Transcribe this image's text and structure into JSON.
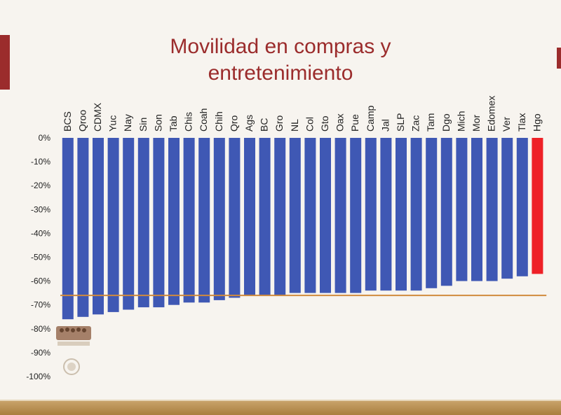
{
  "title_lines": [
    "Movilidad en compras y",
    "entretenimiento"
  ],
  "chart_data": {
    "type": "bar",
    "title": "Movilidad en compras y entretenimiento",
    "categories": [
      "BCS",
      "Qroo",
      "CDMX",
      "Yuc",
      "Nay",
      "Sin",
      "Son",
      "Tab",
      "Chis",
      "Coah",
      "Chih",
      "Qro",
      "Ags",
      "BC",
      "Gro",
      "NL",
      "Col",
      "Gto",
      "Oax",
      "Pue",
      "Camp",
      "Jal",
      "SLP",
      "Zac",
      "Tam",
      "Dgo",
      "Mich",
      "Mor",
      "Edomex",
      "Ver",
      "Tlax",
      "Hgo"
    ],
    "values": [
      -76,
      -75,
      -74,
      -73,
      -72,
      -71,
      -71,
      -70,
      -69,
      -69,
      -68,
      -67,
      -66,
      -66,
      -66,
      -65,
      -65,
      -65,
      -65,
      -65,
      -64,
      -64,
      -64,
      -64,
      -63,
      -62,
      -60,
      -60,
      -60,
      -59,
      -58,
      -57
    ],
    "highlight_category": "Hgo",
    "reference_line": -66,
    "ylim": [
      -100,
      0
    ],
    "yticks": [
      0,
      -10,
      -20,
      -30,
      -40,
      -50,
      -60,
      -70,
      -80,
      -90,
      -100
    ],
    "ytick_labels": [
      "0%",
      "-10%",
      "-20%",
      "-30%",
      "-40%",
      "-50%",
      "-60%",
      "-70%",
      "-80%",
      "-90%",
      "-100%"
    ],
    "colors": {
      "bar": "#3f58b4",
      "highlight": "#ee2127",
      "reference_line": "#d08a3c",
      "tick_text": "#222222"
    }
  }
}
